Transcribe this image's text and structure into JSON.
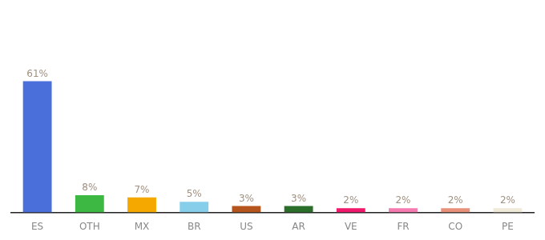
{
  "chart_data": {
    "type": "bar",
    "categories": [
      "ES",
      "OTH",
      "MX",
      "BR",
      "US",
      "AR",
      "VE",
      "FR",
      "CO",
      "PE"
    ],
    "values": [
      61,
      8,
      7,
      5,
      3,
      3,
      2,
      2,
      2,
      2
    ],
    "value_labels": [
      "61%",
      "8%",
      "7%",
      "5%",
      "3%",
      "3%",
      "2%",
      "2%",
      "2%",
      "2%"
    ],
    "colors": [
      "#4a6fdb",
      "#3cb843",
      "#f5a800",
      "#87ceeb",
      "#b5541c",
      "#2a6e2a",
      "#f0186a",
      "#f47ab0",
      "#e8907a",
      "#f0ead8"
    ],
    "ylim": [
      0,
      95
    ],
    "grid": false,
    "data_labels": true,
    "tick_labels": "x"
  }
}
